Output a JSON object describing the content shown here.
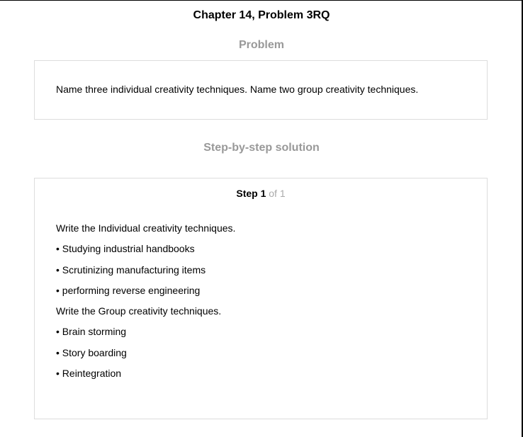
{
  "header": {
    "title": "Chapter 14, Problem 3RQ"
  },
  "problem": {
    "heading": "Problem",
    "text": "Name three individual creativity techniques. Name two group creativity techniques."
  },
  "solution": {
    "heading": "Step-by-step solution",
    "step": {
      "label": "Step 1",
      "of_text": "of 1",
      "lines": [
        "Write the Individual creativity techniques.",
        "• Studying industrial handbooks",
        "• Scrutinizing manufacturing items",
        "• performing reverse engineering",
        "Write the Group creativity techniques.",
        "• Brain storming",
        "• Story boarding",
        "• Reintegration"
      ]
    }
  }
}
